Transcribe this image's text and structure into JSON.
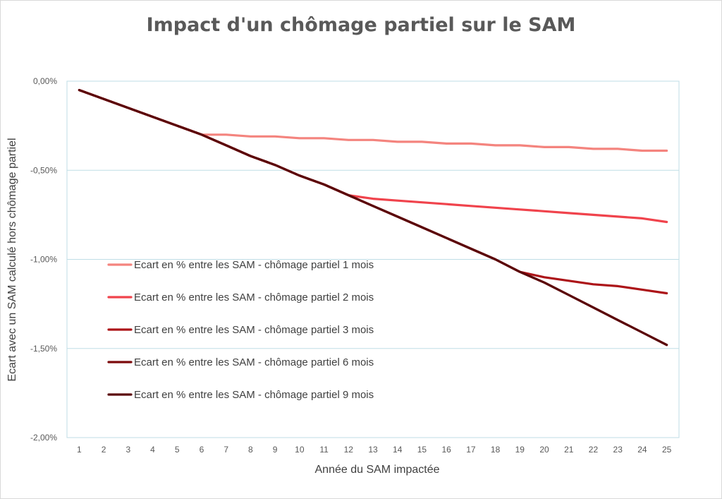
{
  "chart_data": {
    "type": "line",
    "title": "Impact d'un chômage partiel sur le SAM",
    "xlabel": "Année du SAM impactée",
    "ylabel": "Ecart avec un SAM calculé hors chômage partiel",
    "x": [
      1,
      2,
      3,
      4,
      5,
      6,
      7,
      8,
      9,
      10,
      11,
      12,
      13,
      14,
      15,
      16,
      17,
      18,
      19,
      20,
      21,
      22,
      23,
      24,
      25
    ],
    "ylim": [
      -2.0,
      0.0
    ],
    "yticks": [
      0.0,
      -0.5,
      -1.0,
      -1.5,
      -2.0
    ],
    "ytick_labels": [
      "0,00%",
      "-0,50%",
      "-1,00%",
      "-1,50%",
      "-2,00%"
    ],
    "grid": "horizontal",
    "legend_position": "inside-left",
    "series": [
      {
        "name": "Ecart en % entre les SAM - chômage partiel 1 mois",
        "color": "#f4847e",
        "values": [
          -0.05,
          -0.1,
          -0.15,
          -0.2,
          -0.25,
          -0.3,
          -0.3,
          -0.31,
          -0.31,
          -0.32,
          -0.32,
          -0.33,
          -0.33,
          -0.34,
          -0.34,
          -0.35,
          -0.35,
          -0.36,
          -0.36,
          -0.37,
          -0.37,
          -0.38,
          -0.38,
          -0.39,
          -0.39
        ]
      },
      {
        "name": "Ecart en % entre les SAM - chômage partiel 2 mois",
        "color": "#f0434c",
        "values": [
          -0.05,
          -0.1,
          -0.15,
          -0.2,
          -0.25,
          -0.3,
          -0.36,
          -0.42,
          -0.47,
          -0.53,
          -0.58,
          -0.64,
          -0.66,
          -0.67,
          -0.68,
          -0.69,
          -0.7,
          -0.71,
          -0.72,
          -0.73,
          -0.74,
          -0.75,
          -0.76,
          -0.77,
          -0.79
        ]
      },
      {
        "name": "Ecart en % entre les SAM - chômage partiel 3 mois",
        "color": "#ac1418",
        "values": [
          -0.05,
          -0.1,
          -0.15,
          -0.2,
          -0.25,
          -0.3,
          -0.36,
          -0.42,
          -0.47,
          -0.53,
          -0.58,
          -0.64,
          -0.7,
          -0.76,
          -0.82,
          -0.88,
          -0.94,
          -1.0,
          -1.07,
          -1.1,
          -1.12,
          -1.14,
          -1.15,
          -1.17,
          -1.19
        ]
      },
      {
        "name": "Ecart en % entre les SAM - chômage partiel 6 mois",
        "color": "#7c0a0c",
        "values": [
          -0.05,
          -0.1,
          -0.15,
          -0.2,
          -0.25,
          -0.3,
          -0.36,
          -0.42,
          -0.47,
          -0.53,
          -0.58,
          -0.64,
          -0.7,
          -0.76,
          -0.82,
          -0.88,
          -0.94,
          -1.0,
          -1.07,
          -1.13,
          -1.2,
          -1.27,
          -1.34,
          -1.41,
          -1.48
        ]
      },
      {
        "name": "Ecart en % entre les SAM - chômage partiel 9 mois",
        "color": "#5a0608",
        "values": [
          -0.05,
          -0.1,
          -0.15,
          -0.2,
          -0.25,
          -0.3,
          -0.36,
          -0.42,
          -0.47,
          -0.53,
          -0.58,
          -0.64,
          -0.7,
          -0.76,
          -0.82,
          -0.88,
          -0.94,
          -1.0,
          -1.07,
          -1.13,
          -1.2,
          -1.27,
          -1.34,
          -1.41,
          -1.48
        ]
      }
    ]
  }
}
